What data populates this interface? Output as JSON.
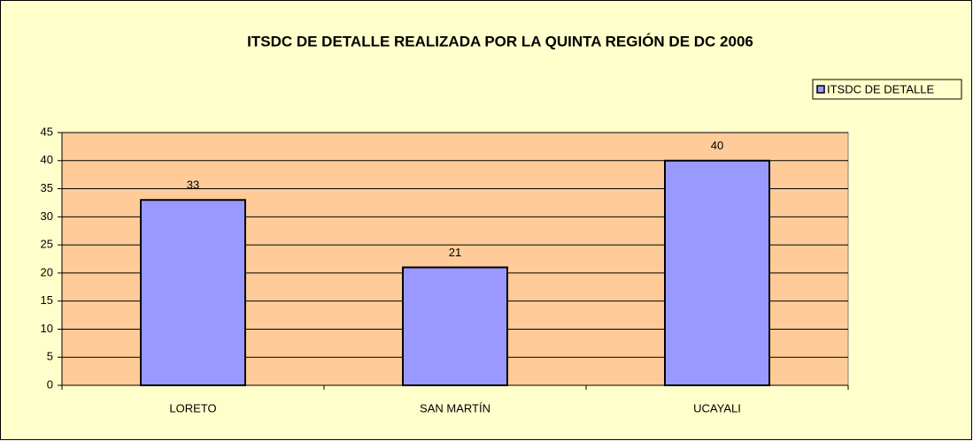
{
  "chart_data": {
    "type": "bar",
    "title": "ITSDC DE DETALLE REALIZADA POR LA QUINTA REGIÓN DE DC 2006",
    "categories": [
      "LORETO",
      "SAN MARTÍN",
      "UCAYALI"
    ],
    "series": [
      {
        "name": "ITSDC DE DETALLE",
        "color": "#9999ff",
        "values": [
          33,
          21,
          40
        ]
      }
    ],
    "ylim": [
      0,
      45
    ],
    "yticks": [
      0,
      5,
      10,
      15,
      20,
      25,
      30,
      35,
      40,
      45
    ],
    "grid": true,
    "legend": "top-right"
  }
}
